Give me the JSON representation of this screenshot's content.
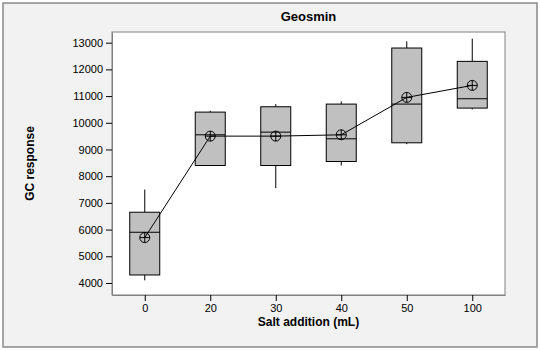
{
  "chart_data": {
    "type": "box",
    "title": "Geosmin",
    "x_label": "Salt addition (mL)",
    "y_label": "GC response",
    "categories": [
      "0",
      "20",
      "30",
      "40",
      "50",
      "100"
    ],
    "min": [
      4100,
      8400,
      7550,
      8400,
      9200,
      10500
    ],
    "q1": [
      4300,
      8400,
      8400,
      8550,
      9250,
      10550
    ],
    "median": [
      5900,
      9550,
      9650,
      9400,
      10700,
      10900
    ],
    "q3": [
      6650,
      10400,
      10600,
      10700,
      12800,
      12300
    ],
    "max": [
      7500,
      10450,
      10700,
      10800,
      13050,
      13150
    ],
    "mean": [
      5700,
      9500,
      9500,
      9550,
      10950,
      11400
    ],
    "color": "#c0c0c0",
    "ylim": [
      3550,
      13400
    ],
    "yticks": [
      4000,
      5000,
      6000,
      7000,
      8000,
      9000,
      10000,
      11000,
      12000,
      13000
    ],
    "grid": false
  }
}
